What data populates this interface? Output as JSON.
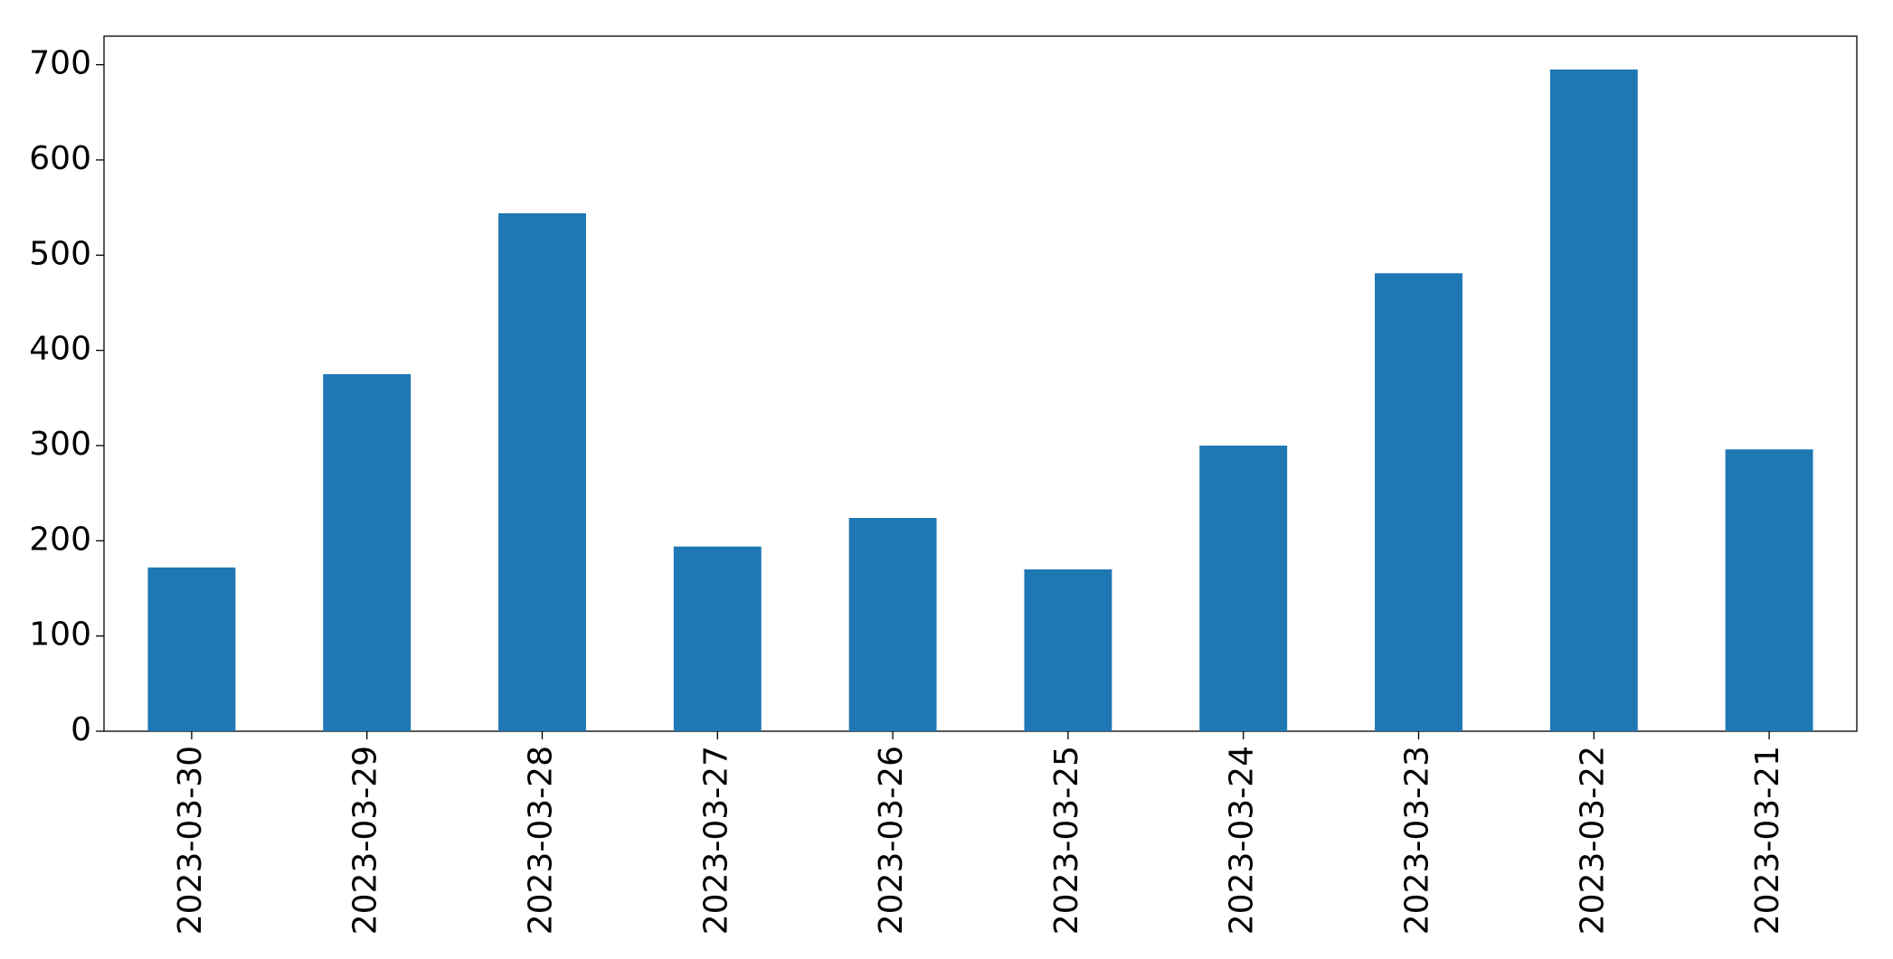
{
  "chart_data": {
    "type": "bar",
    "categories": [
      "2023-03-30",
      "2023-03-29",
      "2023-03-28",
      "2023-03-27",
      "2023-03-26",
      "2023-03-25",
      "2023-03-24",
      "2023-03-23",
      "2023-03-22",
      "2023-03-21"
    ],
    "values": [
      172,
      375,
      544,
      194,
      224,
      170,
      300,
      481,
      695,
      296
    ],
    "color": "#1f77b4",
    "ylim": [
      0,
      730
    ],
    "yticks": [
      0,
      100,
      200,
      300,
      400,
      500,
      600,
      700
    ],
    "grid": false
  }
}
